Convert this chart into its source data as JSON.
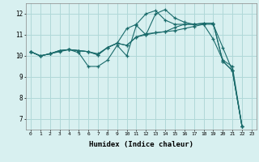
{
  "xlabel": "Humidex (Indice chaleur)",
  "bg_color": "#d8f0f0",
  "grid_color": "#b0d8d8",
  "line_color": "#1a6b6b",
  "xlim": [
    -0.5,
    23.5
  ],
  "ylim": [
    6.5,
    12.5
  ],
  "yticks": [
    7,
    8,
    9,
    10,
    11,
    12
  ],
  "xticks": [
    0,
    1,
    2,
    3,
    4,
    5,
    6,
    7,
    8,
    9,
    10,
    11,
    12,
    13,
    14,
    15,
    16,
    17,
    18,
    19,
    20,
    21,
    22,
    23
  ],
  "lines": [
    [
      0,
      10.2,
      1,
      10.0,
      2,
      10.1,
      3,
      10.2,
      4,
      10.3,
      5,
      10.15,
      6,
      9.5,
      7,
      9.5,
      8,
      9.8,
      9,
      10.5,
      10,
      10.0,
      11,
      11.45,
      12,
      11.0,
      13,
      12.0,
      14,
      12.2,
      15,
      11.8,
      16,
      11.6,
      17,
      11.5,
      18,
      11.5,
      19,
      10.8,
      20,
      9.8,
      21,
      9.5,
      22,
      6.65
    ],
    [
      0,
      10.2,
      1,
      10.0,
      2,
      10.1,
      3,
      10.25,
      4,
      10.3,
      5,
      10.25,
      6,
      10.2,
      7,
      10.1,
      8,
      10.4,
      9,
      10.6,
      10,
      10.5,
      11,
      10.9,
      12,
      11.0,
      13,
      11.1,
      14,
      11.15,
      15,
      11.2,
      16,
      11.3,
      17,
      11.4,
      18,
      11.5,
      19,
      11.5,
      20,
      10.4,
      21,
      9.3,
      22,
      6.65
    ],
    [
      0,
      10.2,
      1,
      10.0,
      2,
      10.1,
      3,
      10.25,
      4,
      10.3,
      5,
      10.25,
      6,
      10.2,
      7,
      10.05,
      8,
      10.4,
      9,
      10.6,
      10,
      11.3,
      11,
      11.5,
      12,
      12.0,
      13,
      12.15,
      14,
      11.7,
      15,
      11.5,
      16,
      11.5,
      17,
      11.5,
      18,
      11.55,
      19,
      11.55,
      20,
      9.75,
      21,
      9.3,
      22,
      6.65
    ],
    [
      0,
      10.2,
      1,
      10.0,
      2,
      10.1,
      3,
      10.25,
      4,
      10.3,
      5,
      10.25,
      6,
      10.2,
      7,
      10.05,
      8,
      10.4,
      9,
      10.6,
      10,
      10.5,
      11,
      10.9,
      12,
      11.05,
      13,
      11.1,
      14,
      11.15,
      15,
      11.35,
      16,
      11.5,
      17,
      11.5,
      18,
      11.55,
      19,
      11.55,
      20,
      9.75,
      21,
      9.3,
      22,
      6.65
    ]
  ]
}
